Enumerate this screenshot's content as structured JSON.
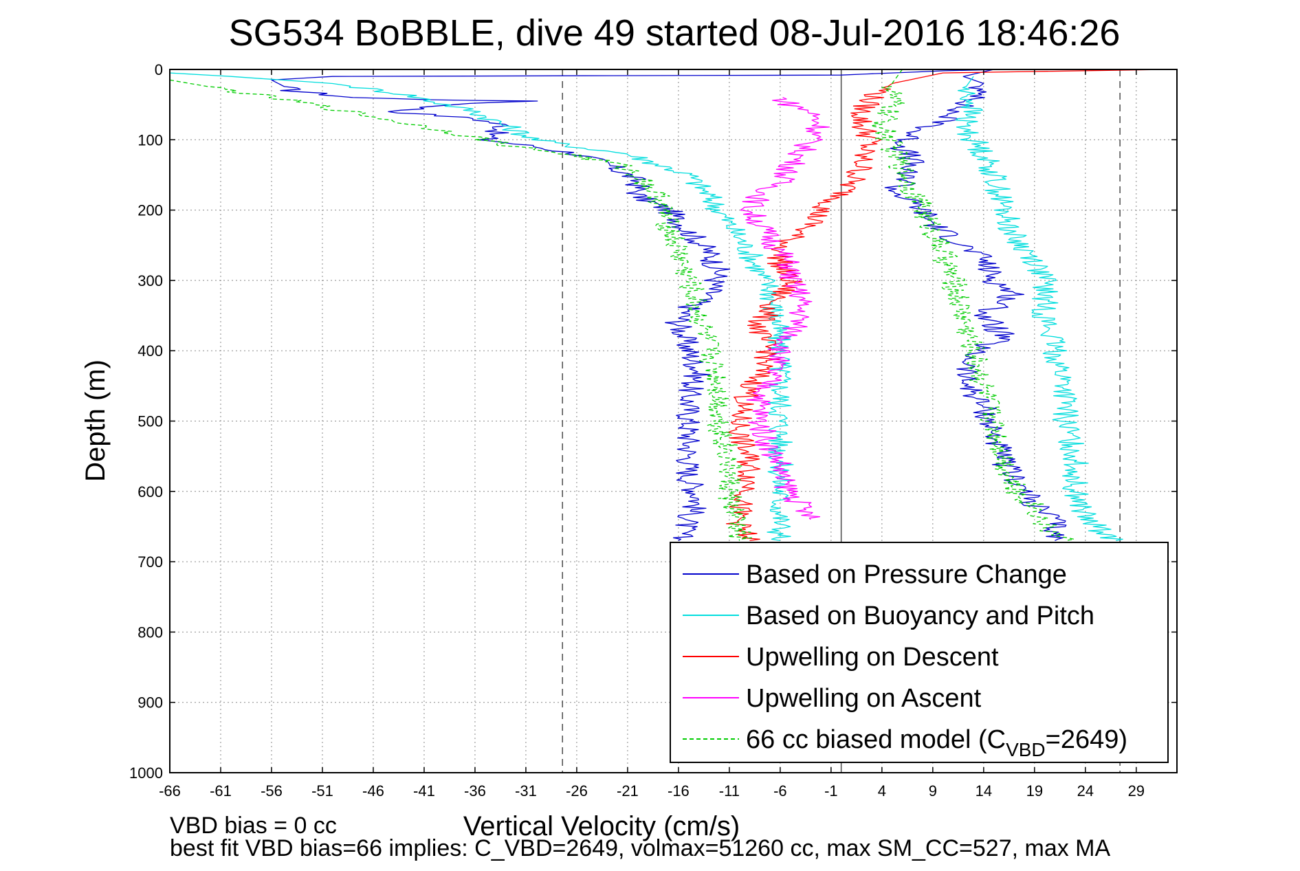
{
  "chart_data": {
    "type": "line",
    "title": "SG534 BoBBLE, dive 49 started 08-Jul-2016 18:46:26",
    "xlabel": "Vertical Velocity (cm/s)",
    "ylabel": "Depth (m)",
    "xlim": [
      -66,
      33
    ],
    "ylim": [
      1000,
      0
    ],
    "y_reversed": true,
    "xticks": [
      -66,
      -61,
      -56,
      -51,
      -46,
      -41,
      -36,
      -31,
      -26,
      -21,
      -16,
      -11,
      -6,
      -1,
      4,
      9,
      14,
      19,
      24,
      29
    ],
    "yticks": [
      0,
      100,
      200,
      300,
      400,
      500,
      600,
      700,
      800,
      900,
      1000
    ],
    "grid": true,
    "legend_position": "bottom-right",
    "vertical_lines": [
      {
        "x": -27.4,
        "style": "dashed",
        "color": "#555555"
      },
      {
        "x": 27.4,
        "style": "dashed",
        "color": "#555555"
      },
      {
        "x": 0,
        "style": "solid",
        "color": "#555555"
      }
    ],
    "series": [
      {
        "name": "Based on Pressure Change",
        "color": "#0000cc",
        "style": "solid",
        "segments": [
          {
            "x": [
              16,
              10,
              5,
              0,
              -50,
              -56,
              -54,
              -48,
              -40,
              -31,
              -38,
              -44,
              -36,
              -33,
              -35,
              -30,
              -26,
              -23,
              -21,
              -20,
              -20,
              -17,
              -15,
              -13,
              -12,
              -13,
              -15,
              -16,
              -15,
              -14,
              -15,
              -15,
              -15,
              -15,
              -14,
              -15,
              -16
            ],
            "y": [
              0,
              2,
              5,
              8,
              10,
              15,
              30,
              40,
              43,
              45,
              50,
              60,
              70,
              80,
              100,
              110,
              120,
              135,
              150,
              160,
              180,
              200,
              230,
              260,
              290,
              320,
              340,
              360,
              400,
              430,
              460,
              500,
              540,
              580,
              610,
              640,
              670
            ]
          },
          {
            "x": [
              15,
              12,
              14,
              13,
              14,
              12,
              11,
              10,
              7,
              6,
              7,
              6,
              7,
              5,
              6,
              8,
              9,
              12,
              14,
              15,
              17,
              14,
              16,
              13,
              12,
              14,
              15,
              16,
              18,
              19,
              21,
              21
            ],
            "y": [
              0,
              10,
              20,
              30,
              40,
              50,
              60,
              75,
              90,
              110,
              130,
              150,
              160,
              170,
              180,
              200,
              220,
              250,
              270,
              300,
              320,
              350,
              380,
              400,
              440,
              480,
              520,
              560,
              600,
              620,
              640,
              670
            ]
          }
        ]
      },
      {
        "name": "Based on Buoyancy and Pitch",
        "color": "#00dddd",
        "style": "solid",
        "segments": [
          {
            "x": [
              -66,
              -60,
              -50,
              -43,
              -36,
              -30,
              -26,
              -21,
              -18,
              -15,
              -13,
              -11,
              -9,
              -8,
              -7,
              -6.5,
              -6,
              -6,
              -6,
              -6,
              -6
            ],
            "y": [
              5,
              10,
              20,
              35,
              60,
              100,
              110,
              120,
              135,
              150,
              180,
              220,
              260,
              290,
              310,
              350,
              400,
              450,
              500,
              600,
              670
            ]
          },
          {
            "x": [
              13,
              12,
              13,
              12,
              13,
              14,
              15,
              16,
              17,
              19,
              20,
              20,
              21,
              22,
              22,
              23,
              23,
              24,
              26,
              27
            ],
            "y": [
              10,
              30,
              50,
              80,
              100,
              120,
              150,
              200,
              240,
              270,
              300,
              350,
              400,
              450,
              500,
              550,
              600,
              640,
              660,
              670
            ]
          }
        ]
      },
      {
        "name": "Upwelling on Descent",
        "color": "#ff0000",
        "style": "solid",
        "segments": [
          {
            "x": [
              32,
              10,
              5,
              3,
              2,
              2,
              3,
              2,
              2,
              1,
              0,
              -2,
              -3,
              -5,
              -6,
              -6,
              -5,
              -6,
              -7,
              -8,
              -8,
              -7,
              -8,
              -9,
              -10,
              -10,
              -9,
              -9,
              -10,
              -10,
              -9
            ],
            "y": [
              0,
              5,
              20,
              40,
              60,
              80,
              100,
              120,
              140,
              160,
              180,
              200,
              220,
              240,
              260,
              280,
              300,
              320,
              340,
              360,
              380,
              400,
              430,
              460,
              480,
              520,
              560,
              600,
              620,
              650,
              670
            ]
          }
        ]
      },
      {
        "name": "Upwelling on Ascent",
        "color": "#ff00ff",
        "style": "solid",
        "segments": [
          {
            "x": [
              -6,
              -5,
              -3,
              -2,
              -3,
              -4,
              -5,
              -6,
              -8,
              -9,
              -8,
              -7,
              -6,
              -5,
              -5,
              -4,
              -4,
              -5,
              -6,
              -7,
              -8,
              -8,
              -7,
              -6,
              -6,
              -5,
              -4,
              -3
            ],
            "y": [
              40,
              50,
              60,
              80,
              100,
              120,
              140,
              160,
              180,
              200,
              220,
              240,
              260,
              280,
              300,
              320,
              350,
              380,
              400,
              440,
              470,
              500,
              540,
              560,
              580,
              600,
              620,
              640
            ]
          }
        ]
      },
      {
        "name": "66 cc biased model (C",
        "name_sub": "VBD",
        "name_suffix": "=2649)",
        "color": "#00cc00",
        "style": "dashed",
        "segments": [
          {
            "x": [
              -66,
              -60,
              -52,
              -45,
              -38,
              -32,
              -27,
              -22,
              -20,
              -18,
              -17,
              -16,
              -15,
              -14,
              -13,
              -12,
              -12,
              -11,
              -11,
              -10
            ],
            "y": [
              15,
              30,
              50,
              70,
              90,
              110,
              120,
              135,
              150,
              180,
              220,
              260,
              300,
              350,
              400,
              450,
              500,
              560,
              600,
              670
            ]
          },
          {
            "x": [
              6,
              5,
              5,
              4,
              5,
              6,
              7,
              8,
              9,
              10,
              11,
              12,
              13,
              14,
              15,
              16,
              17,
              19,
              20,
              22
            ],
            "y": [
              0,
              20,
              50,
              80,
              110,
              140,
              170,
              200,
              230,
              260,
              300,
              350,
              400,
              450,
              500,
              550,
              600,
              620,
              650,
              670
            ]
          }
        ]
      }
    ],
    "annotations": [
      "VBD bias = 0 cc",
      "best fit VBD bias=66 implies: C_VBD=2649, volmax=51260 cc, max SM_CC=527, max MA"
    ]
  }
}
